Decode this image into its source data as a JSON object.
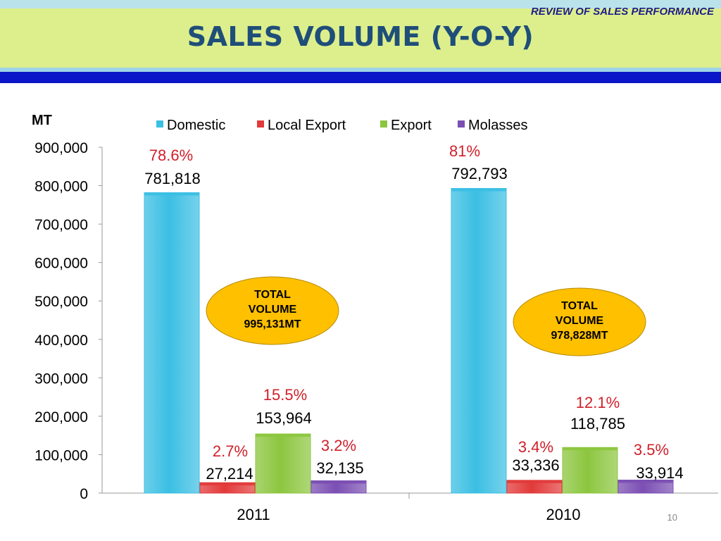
{
  "header": {
    "subtitle": "REVIEW OF SALES PERFORMANCE",
    "title": "SALES VOLUME (Y-O-Y)"
  },
  "page_number": "10",
  "colors": {
    "domestic": "#3bbfe3",
    "local_export": "#e23a3a",
    "export": "#8cc63f",
    "molasses": "#7b4fb3",
    "percent_text": "#d0202a",
    "ellipse": "#ffc000"
  },
  "chart_data": {
    "type": "bar",
    "ylabel": "MT",
    "ylim": [
      0,
      900000
    ],
    "yticks": [
      0,
      100000,
      200000,
      300000,
      400000,
      500000,
      600000,
      700000,
      800000,
      900000
    ],
    "ytick_labels": [
      "0",
      "100,000",
      "200,000",
      "300,000",
      "400,000",
      "500,000",
      "600,000",
      "700,000",
      "800,000",
      "900,000"
    ],
    "categories": [
      "2011",
      "2010"
    ],
    "legend_position": "top",
    "series": [
      {
        "name": "Domestic",
        "values": [
          781818,
          792793
        ],
        "value_labels": [
          "781,818",
          "792,793"
        ],
        "percent_labels": [
          "78.6%",
          "81%"
        ]
      },
      {
        "name": "Local Export",
        "values": [
          27214,
          33336
        ],
        "value_labels": [
          "27,214",
          "33,336"
        ],
        "percent_labels": [
          "2.7%",
          "3.4%"
        ]
      },
      {
        "name": "Export",
        "values": [
          153964,
          118785
        ],
        "value_labels": [
          "153,964",
          "118,785"
        ],
        "percent_labels": [
          "15.5%",
          "12.1%"
        ]
      },
      {
        "name": "Molasses",
        "values": [
          32135,
          33914
        ],
        "value_labels": [
          "32,135",
          "33,914"
        ],
        "percent_labels": [
          "3.2%",
          "3.5%"
        ]
      }
    ],
    "annotations": [
      {
        "lines": [
          "TOTAL",
          "VOLUME",
          "995,131MT"
        ]
      },
      {
        "lines": [
          "TOTAL",
          "VOLUME",
          "978,828MT"
        ]
      }
    ]
  }
}
